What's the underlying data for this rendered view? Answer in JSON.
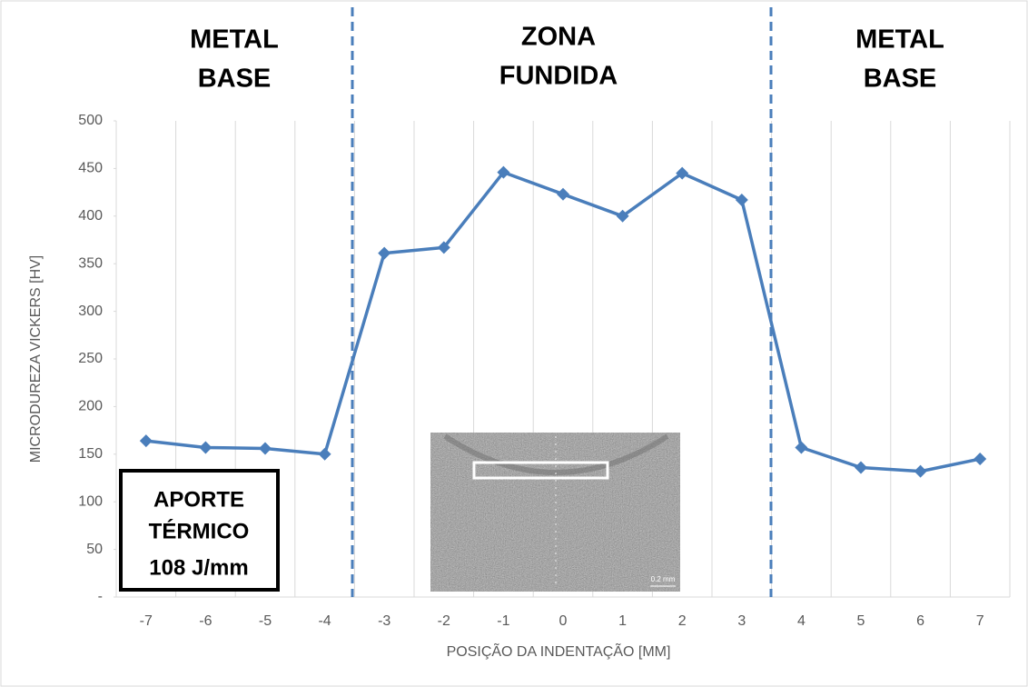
{
  "chart_data": {
    "type": "line",
    "y_label": "MICRODUREZA VICKERS [HV]",
    "x_label": "POSIÇÃO DA INDENTAÇÃO [MM]",
    "categories": [
      "-7",
      "-6",
      "-5",
      "-4",
      "-3",
      "-2",
      "-1",
      "0",
      "1",
      "2",
      "3",
      "4",
      "5",
      "6",
      "7"
    ],
    "series": [
      {
        "name": "Microdureza",
        "color": "#4a7ebb",
        "values": [
          164,
          157,
          156,
          150,
          361,
          367,
          446,
          423,
          400,
          445,
          417,
          157,
          136,
          132,
          145
        ]
      }
    ],
    "ylim": [
      0,
      500
    ],
    "yticks": [
      {
        "value": 0,
        "label": "-"
      },
      50,
      100,
      150,
      200,
      250,
      300,
      350,
      400,
      450,
      500
    ],
    "zone_labels": [
      [
        "METAL",
        "BASE"
      ],
      [
        "ZONA",
        "FUNDIDA"
      ],
      [
        "METAL",
        "BASE"
      ]
    ],
    "heat_input_box": [
      "APORTE",
      "TÉRMICO",
      "108 J/mm"
    ],
    "inset_scale_label": "0.2 mm"
  }
}
